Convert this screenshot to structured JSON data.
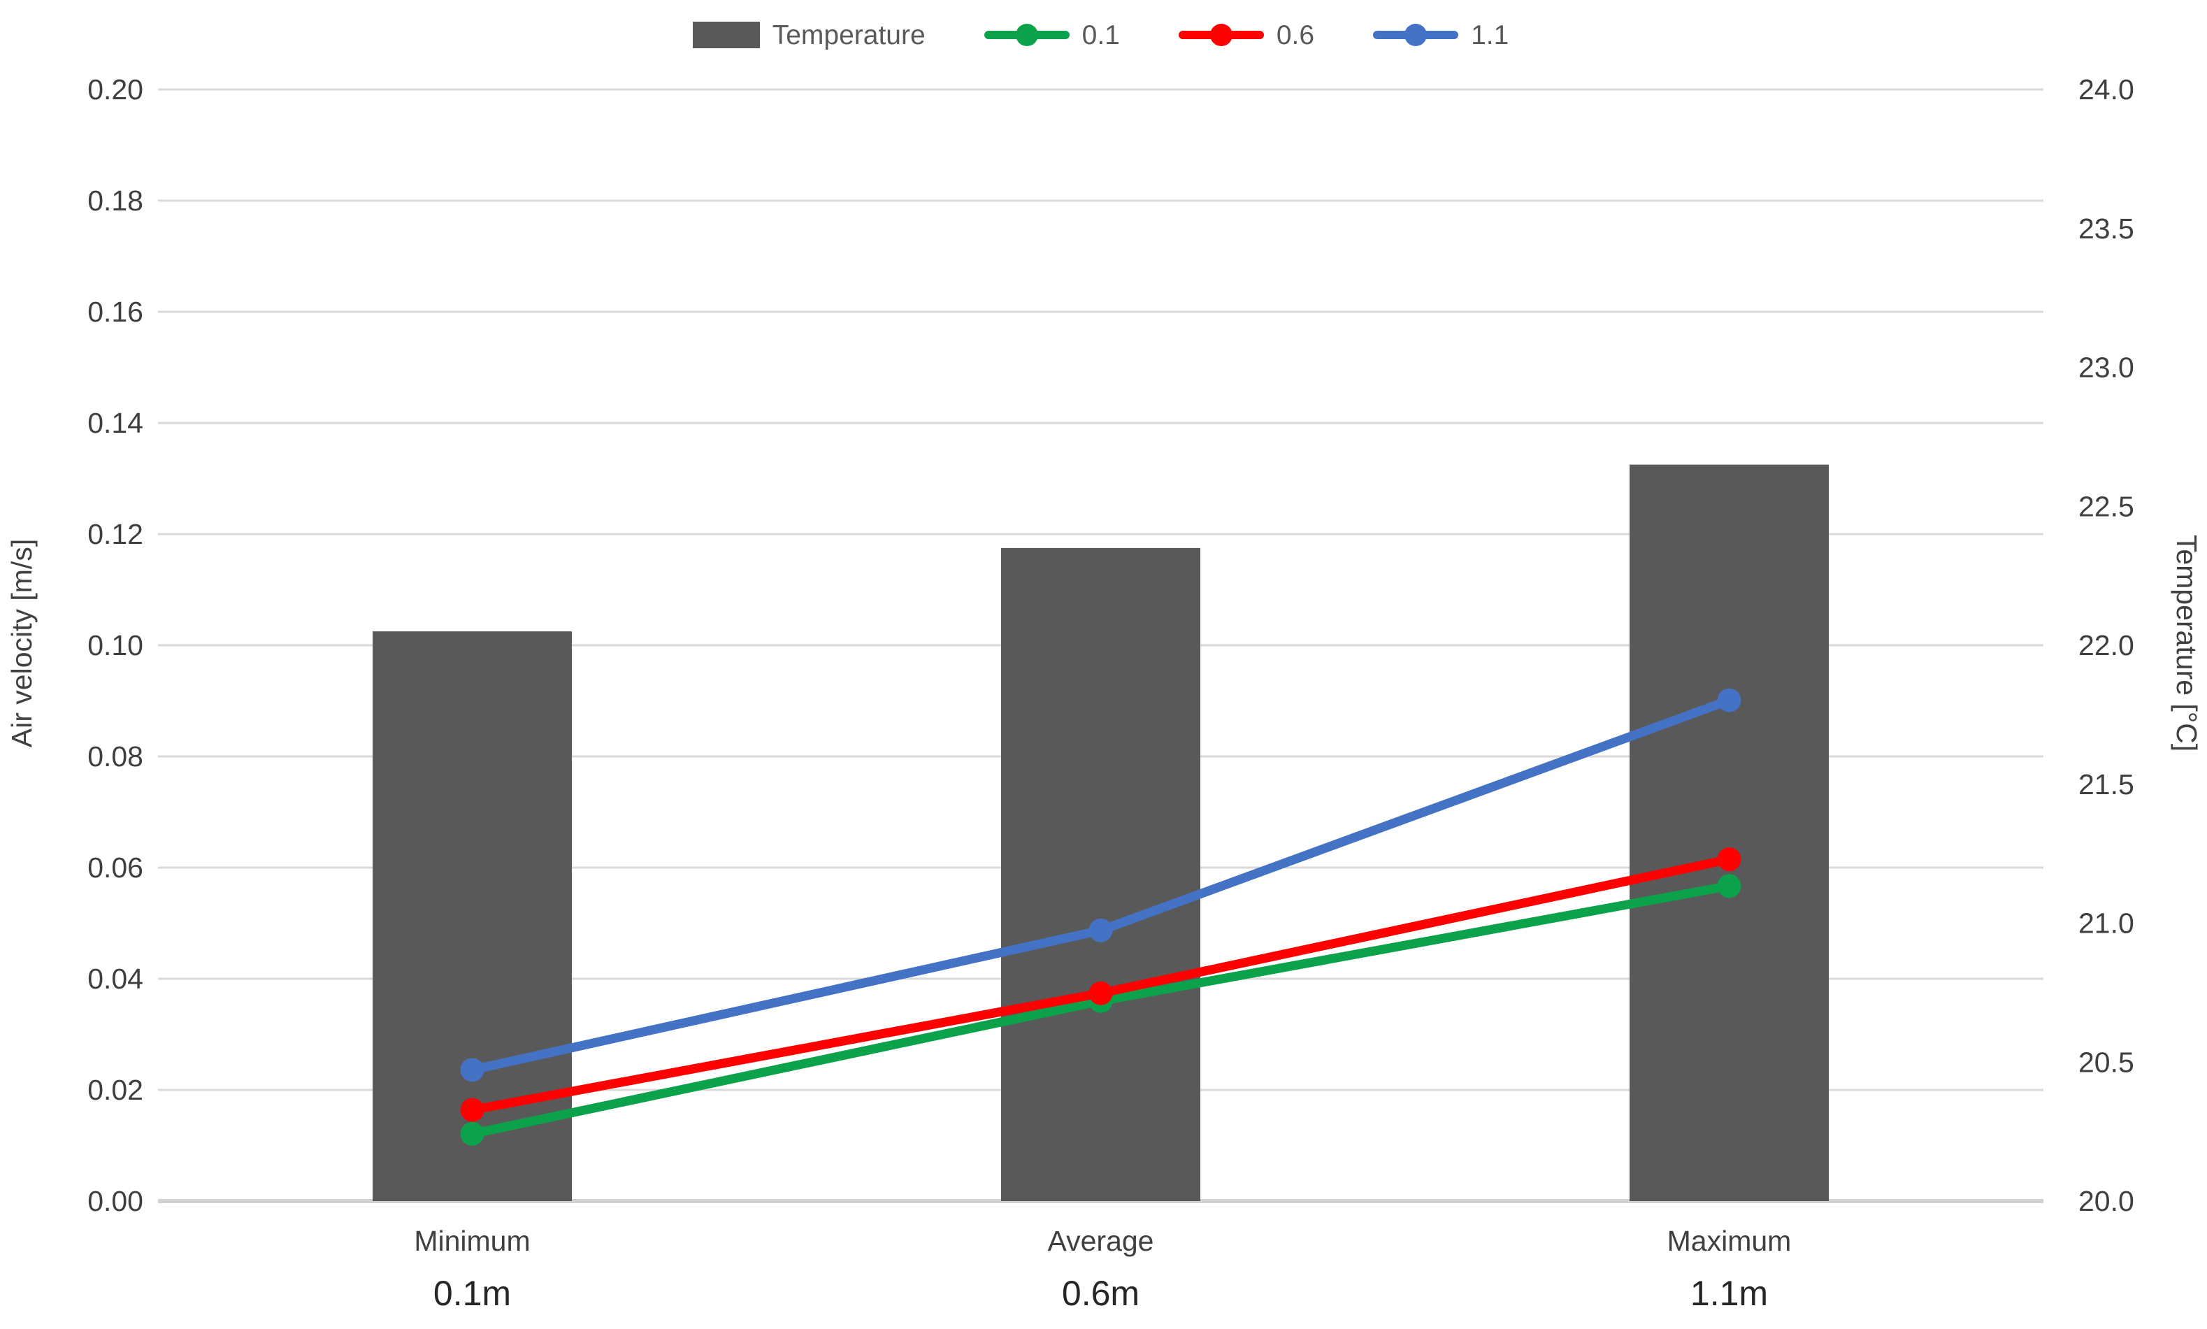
{
  "chart_data": {
    "type": "combo-bar-line",
    "title": "",
    "categories": [
      "Minimum",
      "Average",
      "Maximum"
    ],
    "category_sublabels": [
      "0.1m",
      "0.6m",
      "1.1m"
    ],
    "bar_series": {
      "name": "Temperature",
      "axis": "right",
      "color": "#595959",
      "values": [
        22.05,
        22.35,
        22.65
      ]
    },
    "line_series": [
      {
        "name": "0.1",
        "axis": "left",
        "color": "#0CA24C",
        "values": [
          0.0121,
          0.036,
          0.0567
        ]
      },
      {
        "name": "0.6",
        "axis": "left",
        "color": "#FE0000",
        "values": [
          0.0164,
          0.0374,
          0.0615
        ]
      },
      {
        "name": "1.1",
        "axis": "left",
        "color": "#4472C4",
        "values": [
          0.0236,
          0.0487,
          0.0901
        ]
      }
    ],
    "left_axis": {
      "title": "Air velocity [m/s]",
      "min": 0.0,
      "max": 0.2,
      "tick_labels": [
        "0.20",
        "0.18",
        "0.16",
        "0.14",
        "0.12",
        "0.10",
        "0.08",
        "0.06",
        "0.04",
        "0.02",
        "0.00"
      ]
    },
    "right_axis": {
      "title": "Temperature [°C]",
      "min": 20.0,
      "max": 24.0,
      "tick_labels": [
        "24.0",
        "23.5",
        "23.0",
        "22.5",
        "22.0",
        "21.5",
        "21.0",
        "20.5",
        "20.0"
      ]
    },
    "legend_position": "top",
    "grid": true,
    "colors": {
      "gridline": "#DADADA",
      "baseline": "#D2D2D2",
      "tick_text": "#3F3F3F",
      "legend_text": "#595959",
      "bar": "#595959"
    },
    "legend": [
      {
        "label": "Temperature",
        "swatch": "bar",
        "color": "#595959"
      },
      {
        "label": "0.1",
        "swatch": "line",
        "color": "#0CA24C"
      },
      {
        "label": "0.6",
        "swatch": "line",
        "color": "#FE0000"
      },
      {
        "label": "1.1",
        "swatch": "line",
        "color": "#4472C4"
      }
    ]
  }
}
